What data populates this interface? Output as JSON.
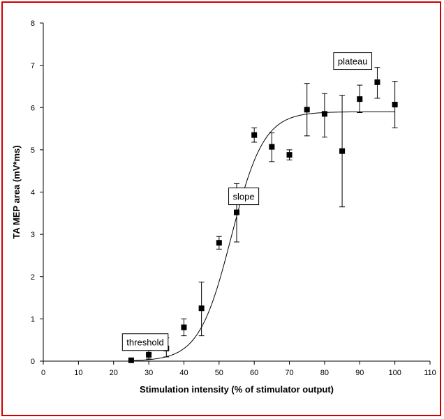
{
  "colors": {
    "frame_border": "#cc0000",
    "ink": "#000000",
    "background": "#ffffff"
  },
  "chart_data": {
    "type": "scatter",
    "title": "",
    "xlabel": "Stimulation intensity (%  of stimulator output)",
    "ylabel": "TA MEP area (mV*ms)",
    "xlim": [
      0,
      110
    ],
    "ylim": [
      0,
      8
    ],
    "x_ticks": [
      "0",
      "10",
      "20",
      "30",
      "40",
      "50",
      "60",
      "70",
      "80",
      "90",
      "100",
      "110"
    ],
    "y_ticks": [
      "0",
      "1",
      "2",
      "3",
      "4",
      "5",
      "6",
      "7",
      "8"
    ],
    "grid": false,
    "legend": "none",
    "series": [
      {
        "marker": "square",
        "points": [
          {
            "x": 25,
            "y": 0.02,
            "err_lo": 0.0,
            "err_hi": 0.0
          },
          {
            "x": 30,
            "y": 0.15,
            "err_lo": 0.1,
            "err_hi": 0.1
          },
          {
            "x": 35,
            "y": 0.3,
            "err_lo": 0.2,
            "err_hi": 0.25
          },
          {
            "x": 40,
            "y": 0.8,
            "err_lo": 0.2,
            "err_hi": 0.2
          },
          {
            "x": 45,
            "y": 1.25,
            "err_lo": 0.65,
            "err_hi": 0.62
          },
          {
            "x": 50,
            "y": 2.8,
            "err_lo": 0.15,
            "err_hi": 0.15
          },
          {
            "x": 55,
            "y": 3.52,
            "err_lo": 0.7,
            "err_hi": 0.68
          },
          {
            "x": 60,
            "y": 5.35,
            "err_lo": 0.17,
            "err_hi": 0.17
          },
          {
            "x": 65,
            "y": 5.07,
            "err_lo": 0.35,
            "err_hi": 0.33
          },
          {
            "x": 70,
            "y": 4.88,
            "err_lo": 0.12,
            "err_hi": 0.12
          },
          {
            "x": 75,
            "y": 5.95,
            "err_lo": 0.62,
            "err_hi": 0.62
          },
          {
            "x": 80,
            "y": 5.85,
            "err_lo": 0.55,
            "err_hi": 0.48
          },
          {
            "x": 85,
            "y": 4.97,
            "err_lo": 1.32,
            "err_hi": 1.32
          },
          {
            "x": 90,
            "y": 6.2,
            "err_lo": 0.32,
            "err_hi": 0.33
          },
          {
            "x": 95,
            "y": 6.6,
            "err_lo": 0.38,
            "err_hi": 0.35
          },
          {
            "x": 100,
            "y": 6.07,
            "err_lo": 0.55,
            "err_hi": 0.55
          }
        ]
      }
    ],
    "fit_curve": {
      "type": "sigmoid",
      "plateau": 5.9,
      "midpoint": 53.5,
      "slope": 4.6,
      "x_range": [
        25,
        100
      ]
    },
    "annotations": [
      {
        "text": "threshold",
        "x": 29,
        "y": 0.45
      },
      {
        "text": "slope",
        "x": 57,
        "y": 3.9
      },
      {
        "text": "plateau",
        "x": 88,
        "y": 7.1
      }
    ]
  }
}
